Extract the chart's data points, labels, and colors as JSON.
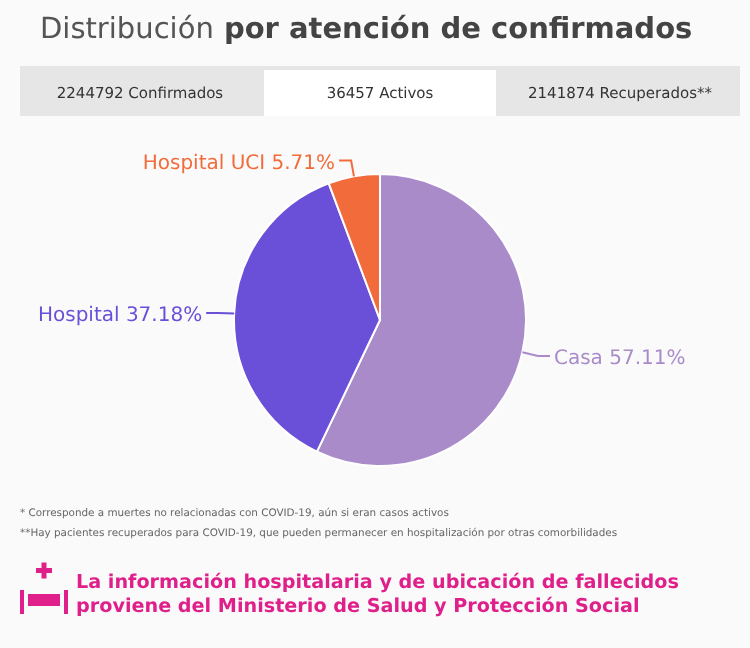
{
  "chart_data": {
    "type": "pie",
    "title": "Distribución por atención de confirmados",
    "categories": [
      "Casa",
      "Hospital",
      "Hospital UCI"
    ],
    "values": [
      57.11,
      37.18,
      5.71
    ],
    "colors": [
      "#a98bc9",
      "#6a4fd8",
      "#f26b3a"
    ],
    "value_labels": [
      "57.11%",
      "37.18%",
      "5.71%"
    ],
    "annotations": [
      "2244792 Confirmados",
      "36457 Activos",
      "2141874 Recuperados**",
      "* Corresponde a muertes no relacionadas con COVID-19, aún si eran casos activos",
      "**Hay pacientes recuperados para COVID-19, que pueden permanecer en hospitalización por otras comorbilidades",
      "La información hospitalaria y de ubicación de fallecidos proviene del Ministerio de Salud y Protección Social"
    ]
  }
}
